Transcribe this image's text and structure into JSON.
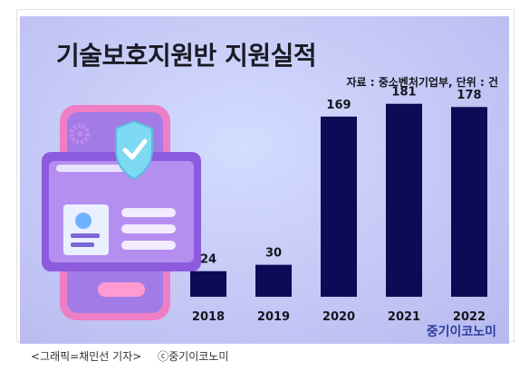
{
  "title": "기술보호지원반 지원실적",
  "source": "자료 : 중소벤처기업부, 단위 : 건",
  "brand": "중기이코노미",
  "caption": {
    "credit": "<그래픽=채민선 기자>",
    "copyright": "ⓒ중기이코노미"
  },
  "colors": {
    "bar": "#0c0b55",
    "background": "#c7ccf7"
  },
  "illustration": {
    "icons": [
      "phone-icon",
      "shield-check-icon",
      "gear-icon",
      "profile-card-icon"
    ]
  },
  "chart_data": {
    "type": "bar",
    "categories": [
      "2018",
      "2019",
      "2020",
      "2021",
      "2022"
    ],
    "values": [
      24,
      30,
      169,
      181,
      178
    ],
    "title": "기술보호지원반 지원실적",
    "xlabel": "",
    "ylabel": "",
    "ylim": [
      0,
      200
    ],
    "data_labels": true,
    "grid": false,
    "legend": "none"
  }
}
